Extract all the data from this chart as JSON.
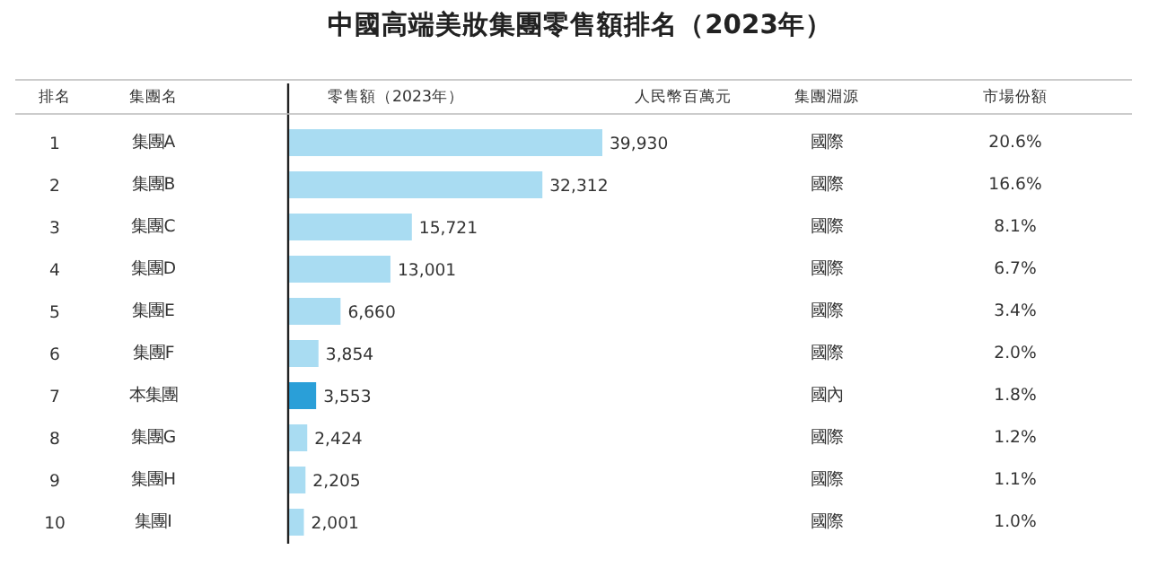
{
  "chart_data": {
    "type": "bar",
    "orientation": "horizontal",
    "title": "中國高端美妝集團零售額排名（2023年）",
    "categories": [
      "集團A",
      "集團B",
      "集團C",
      "集團D",
      "集團E",
      "集團F",
      "本集團",
      "集團G",
      "集團H",
      "集團I"
    ],
    "values": [
      39930,
      32312,
      15721,
      13001,
      6660,
      3854,
      3553,
      2424,
      2205,
      2001
    ],
    "value_labels": [
      "39,930",
      "32,312",
      "15,721",
      "13,001",
      "6,660",
      "3,854",
      "3,553",
      "2,424",
      "2,205",
      "2,001"
    ],
    "colors": [
      "#a9dcf2",
      "#a9dcf2",
      "#a9dcf2",
      "#a9dcf2",
      "#a9dcf2",
      "#a9dcf2",
      "#2a9fd8",
      "#a9dcf2",
      "#a9dcf2",
      "#a9dcf2"
    ],
    "annotations": [
      "排名",
      "集團名",
      "零售額（2023年）",
      "人民幣百萬元",
      "集團淵源",
      "市場份額",
      "1",
      "國際",
      "20.6%",
      "2",
      "國際",
      "16.6%",
      "3",
      "國際",
      "8.1%",
      "4",
      "國際",
      "6.7%",
      "5",
      "國際",
      "3.4%",
      "6",
      "國際",
      "2.0%",
      "7",
      "國內",
      "1.8%",
      "8",
      "國際",
      "1.2%",
      "9",
      "國際",
      "1.1%",
      "10",
      "國際",
      "1.0%"
    ]
  }
}
